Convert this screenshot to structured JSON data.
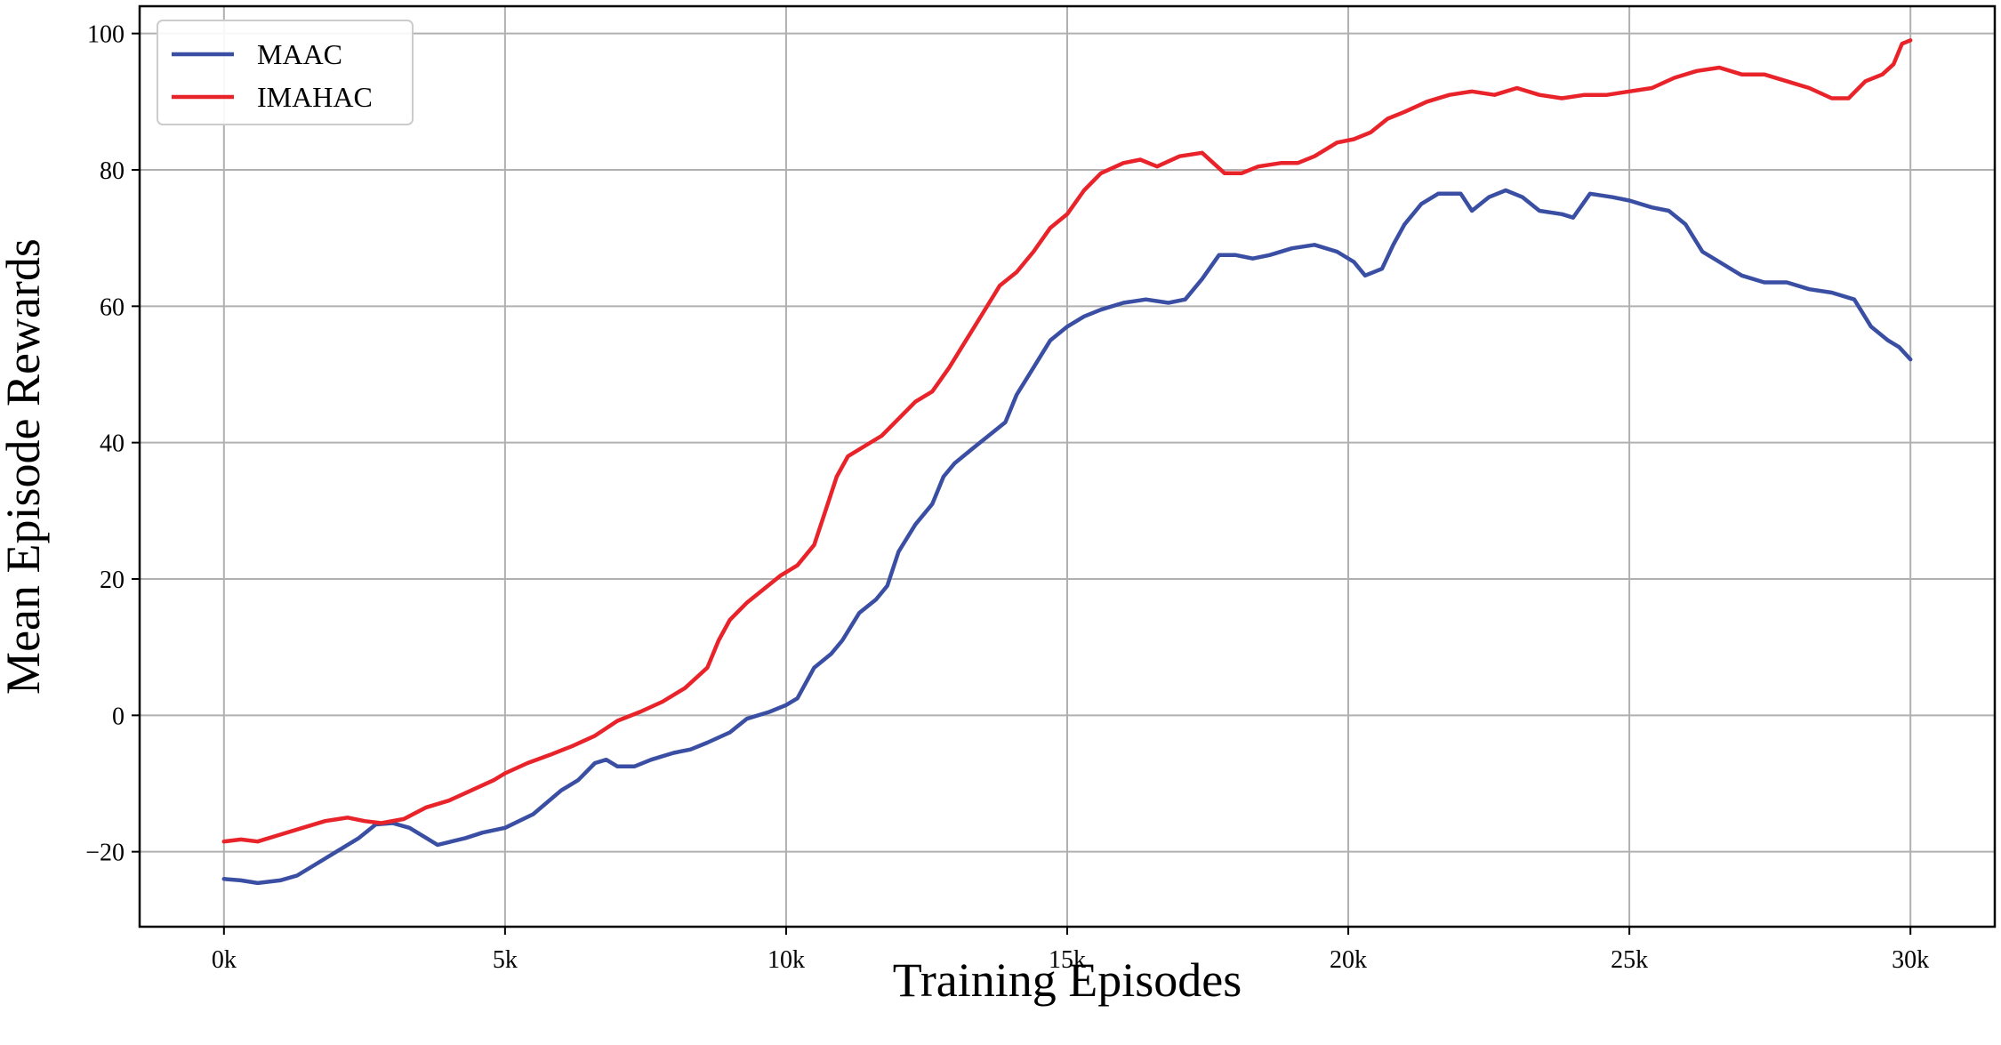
{
  "chart_data": {
    "type": "line",
    "title": "",
    "xlabel": "Training Episodes",
    "ylabel": "Mean Episode Rewards",
    "xlim": [
      -1500,
      31500
    ],
    "ylim": [
      -31,
      104
    ],
    "x_ticks": [
      0,
      5000,
      10000,
      15000,
      20000,
      25000,
      30000
    ],
    "x_tick_labels": [
      "0k",
      "5k",
      "10k",
      "15k",
      "20k",
      "25k",
      "30k"
    ],
    "y_ticks": [
      -20,
      0,
      20,
      40,
      60,
      80,
      100
    ],
    "y_tick_labels": [
      "−20",
      "0",
      "20",
      "40",
      "60",
      "80",
      "100"
    ],
    "grid": true,
    "legend_position": "top-left",
    "series": [
      {
        "name": "MAAC",
        "color": "#3a4fa3",
        "points": [
          [
            0,
            -24
          ],
          [
            300,
            -24.2
          ],
          [
            600,
            -24.6
          ],
          [
            1000,
            -24.2
          ],
          [
            1300,
            -23.5
          ],
          [
            1600,
            -22
          ],
          [
            2000,
            -20
          ],
          [
            2400,
            -18
          ],
          [
            2700,
            -16
          ],
          [
            3000,
            -15.8
          ],
          [
            3300,
            -16.5
          ],
          [
            3600,
            -18
          ],
          [
            3800,
            -19
          ],
          [
            4000,
            -18.6
          ],
          [
            4300,
            -18
          ],
          [
            4600,
            -17.2
          ],
          [
            5000,
            -16.5
          ],
          [
            5500,
            -14.5
          ],
          [
            6000,
            -11
          ],
          [
            6300,
            -9.5
          ],
          [
            6600,
            -7
          ],
          [
            6800,
            -6.5
          ],
          [
            7000,
            -7.5
          ],
          [
            7300,
            -7.5
          ],
          [
            7600,
            -6.5
          ],
          [
            8000,
            -5.5
          ],
          [
            8300,
            -5
          ],
          [
            8600,
            -4
          ],
          [
            9000,
            -2.5
          ],
          [
            9300,
            -0.5
          ],
          [
            9700,
            0.5
          ],
          [
            10000,
            1.5
          ],
          [
            10200,
            2.5
          ],
          [
            10500,
            7
          ],
          [
            10800,
            9
          ],
          [
            11000,
            11
          ],
          [
            11300,
            15
          ],
          [
            11600,
            17
          ],
          [
            11800,
            19
          ],
          [
            12000,
            24
          ],
          [
            12300,
            28
          ],
          [
            12600,
            31
          ],
          [
            12800,
            35
          ],
          [
            13000,
            37
          ],
          [
            13300,
            39
          ],
          [
            13600,
            41
          ],
          [
            13900,
            43
          ],
          [
            14100,
            47
          ],
          [
            14400,
            51
          ],
          [
            14700,
            55
          ],
          [
            15000,
            57
          ],
          [
            15300,
            58.5
          ],
          [
            15600,
            59.5
          ],
          [
            16000,
            60.5
          ],
          [
            16400,
            61
          ],
          [
            16800,
            60.5
          ],
          [
            17100,
            61
          ],
          [
            17400,
            64
          ],
          [
            17700,
            67.5
          ],
          [
            18000,
            67.5
          ],
          [
            18300,
            67
          ],
          [
            18600,
            67.5
          ],
          [
            19000,
            68.5
          ],
          [
            19400,
            69
          ],
          [
            19800,
            68
          ],
          [
            20100,
            66.5
          ],
          [
            20300,
            64.5
          ],
          [
            20600,
            65.5
          ],
          [
            20800,
            69
          ],
          [
            21000,
            72
          ],
          [
            21300,
            75
          ],
          [
            21600,
            76.5
          ],
          [
            22000,
            76.5
          ],
          [
            22200,
            74
          ],
          [
            22500,
            76
          ],
          [
            22800,
            77
          ],
          [
            23100,
            76
          ],
          [
            23400,
            74
          ],
          [
            23800,
            73.5
          ],
          [
            24000,
            73
          ],
          [
            24300,
            76.5
          ],
          [
            24700,
            76
          ],
          [
            25000,
            75.5
          ],
          [
            25400,
            74.5
          ],
          [
            25700,
            74
          ],
          [
            26000,
            72
          ],
          [
            26300,
            68
          ],
          [
            26600,
            66.5
          ],
          [
            27000,
            64.5
          ],
          [
            27400,
            63.5
          ],
          [
            27800,
            63.5
          ],
          [
            28200,
            62.5
          ],
          [
            28600,
            62
          ],
          [
            29000,
            61
          ],
          [
            29300,
            57
          ],
          [
            29600,
            55
          ],
          [
            29800,
            54
          ],
          [
            30000,
            52.2
          ]
        ]
      },
      {
        "name": "IMAHAC",
        "color": "#e8232a",
        "points": [
          [
            0,
            -18.5
          ],
          [
            300,
            -18.2
          ],
          [
            600,
            -18.5
          ],
          [
            1000,
            -17.5
          ],
          [
            1400,
            -16.5
          ],
          [
            1800,
            -15.5
          ],
          [
            2200,
            -15
          ],
          [
            2500,
            -15.5
          ],
          [
            2800,
            -15.8
          ],
          [
            3200,
            -15.2
          ],
          [
            3600,
            -13.5
          ],
          [
            4000,
            -12.5
          ],
          [
            4400,
            -11
          ],
          [
            4800,
            -9.5
          ],
          [
            5000,
            -8.5
          ],
          [
            5400,
            -7
          ],
          [
            5800,
            -5.8
          ],
          [
            6200,
            -4.5
          ],
          [
            6600,
            -3
          ],
          [
            7000,
            -0.8
          ],
          [
            7400,
            0.5
          ],
          [
            7800,
            2
          ],
          [
            8200,
            4
          ],
          [
            8600,
            7
          ],
          [
            8800,
            11
          ],
          [
            9000,
            14
          ],
          [
            9300,
            16.5
          ],
          [
            9600,
            18.5
          ],
          [
            9900,
            20.5
          ],
          [
            10200,
            22
          ],
          [
            10500,
            25
          ],
          [
            10700,
            30
          ],
          [
            10900,
            35
          ],
          [
            11100,
            38
          ],
          [
            11400,
            39.5
          ],
          [
            11700,
            41
          ],
          [
            12000,
            43.5
          ],
          [
            12300,
            46
          ],
          [
            12600,
            47.5
          ],
          [
            12900,
            51
          ],
          [
            13200,
            55
          ],
          [
            13500,
            59
          ],
          [
            13800,
            63
          ],
          [
            14100,
            65
          ],
          [
            14400,
            68
          ],
          [
            14700,
            71.5
          ],
          [
            15000,
            73.5
          ],
          [
            15300,
            77
          ],
          [
            15600,
            79.5
          ],
          [
            16000,
            81
          ],
          [
            16300,
            81.5
          ],
          [
            16600,
            80.5
          ],
          [
            17000,
            82
          ],
          [
            17400,
            82.5
          ],
          [
            17800,
            79.5
          ],
          [
            18100,
            79.5
          ],
          [
            18400,
            80.5
          ],
          [
            18800,
            81
          ],
          [
            19100,
            81
          ],
          [
            19400,
            82
          ],
          [
            19800,
            84
          ],
          [
            20100,
            84.5
          ],
          [
            20400,
            85.5
          ],
          [
            20700,
            87.5
          ],
          [
            21000,
            88.5
          ],
          [
            21400,
            90
          ],
          [
            21800,
            91
          ],
          [
            22200,
            91.5
          ],
          [
            22600,
            91
          ],
          [
            23000,
            92
          ],
          [
            23400,
            91
          ],
          [
            23800,
            90.5
          ],
          [
            24200,
            91
          ],
          [
            24600,
            91
          ],
          [
            25000,
            91.5
          ],
          [
            25400,
            92
          ],
          [
            25800,
            93.5
          ],
          [
            26200,
            94.5
          ],
          [
            26600,
            95
          ],
          [
            27000,
            94
          ],
          [
            27400,
            94
          ],
          [
            27800,
            93
          ],
          [
            28200,
            92
          ],
          [
            28600,
            90.5
          ],
          [
            28900,
            90.5
          ],
          [
            29200,
            93
          ],
          [
            29500,
            94
          ],
          [
            29700,
            95.5
          ],
          [
            29850,
            98.5
          ],
          [
            30000,
            99
          ]
        ]
      }
    ]
  }
}
